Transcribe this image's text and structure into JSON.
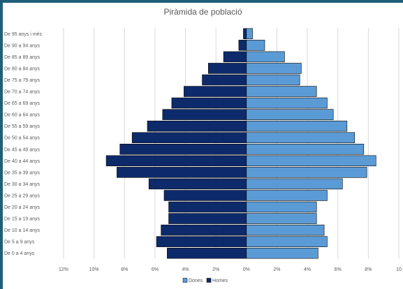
{
  "chart_data": {
    "type": "bar",
    "orientation": "horizontal",
    "title": "Piràmida de població",
    "categories": [
      "De 95 anys i més",
      "De 90 a 94 anys",
      "De 85 a 89 anys",
      "De 80 a 84 anys",
      "De 75 a 79 anys",
      "De 70 a 74 anys",
      "De 65 a 69 anys",
      "De 60 a 64 anys",
      "De 55 a 59 anys",
      "De 50 a 54 anys",
      "De 45 a 49 anys",
      "De 40 a 44 anys",
      "De 35 a 39 anys",
      "De 30 a 34 anys",
      "De 25 a 29 anys",
      "De 20 a 24 anys",
      "De 15 a 19 anys",
      "De 10 a 14 anys",
      "De 5 a 9 anys",
      "De 0 a 4 anys"
    ],
    "series": [
      {
        "name": "Dones",
        "color": "#5b9bd5",
        "values": [
          0.4,
          1.2,
          2.5,
          3.6,
          3.5,
          4.6,
          5.3,
          5.7,
          6.6,
          7.1,
          7.7,
          8.5,
          7.9,
          6.3,
          5.3,
          4.6,
          4.6,
          5.1,
          5.3,
          4.7
        ]
      },
      {
        "name": "Homes",
        "color": "#0d2a6b",
        "values": [
          0.2,
          0.5,
          1.5,
          2.5,
          2.9,
          4.1,
          4.9,
          5.5,
          6.5,
          7.5,
          8.3,
          9.2,
          8.5,
          6.4,
          5.4,
          5.1,
          5.1,
          5.6,
          5.9,
          5.2
        ]
      }
    ],
    "xlim": [
      -12,
      10
    ],
    "xticks": [
      -12,
      -10,
      -8,
      -6,
      -4,
      -2,
      0,
      2,
      4,
      6,
      8,
      10
    ],
    "xtick_labels": [
      "12%",
      "10%",
      "8%",
      "6%",
      "4%",
      "2%",
      "0%",
      "2%",
      "4%",
      "6%",
      "8%",
      "10"
    ],
    "grid": true,
    "legend_position": "bottom",
    "legend": [
      "Dones",
      "Homes"
    ]
  }
}
